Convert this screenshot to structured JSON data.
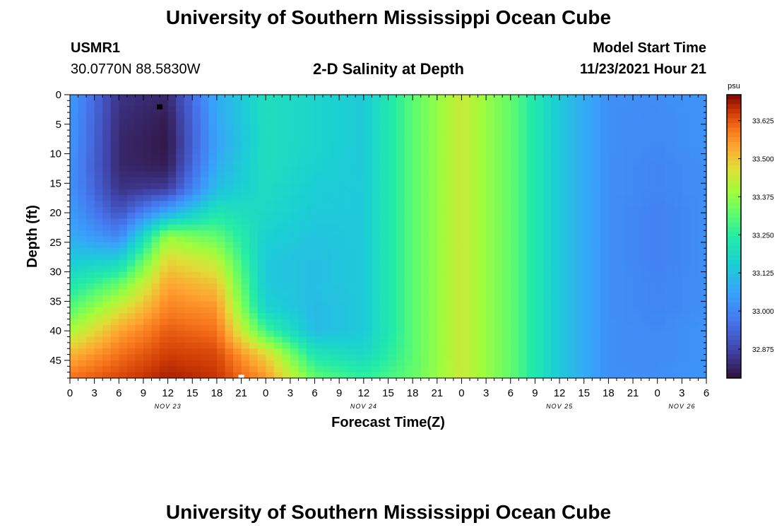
{
  "page": {
    "title_top": "University of Southern Mississippi Ocean Cube",
    "title_bottom": "University of Southern Mississippi Ocean Cube",
    "station": "USMR1",
    "coords": "30.0770N  88.5830W",
    "model_start_label": "Model Start Time",
    "model_start_value": "11/23/2021 Hour 21",
    "subtitle": "2-D Salinity at Depth"
  },
  "chart_data": {
    "type": "heatmap",
    "title": "2-D Salinity at Depth",
    "xlabel": "Forecast Time(Z)",
    "ylabel": "Depth (ft)",
    "x_ticks": [
      "0",
      "3",
      "6",
      "9",
      "12",
      "15",
      "18",
      "21",
      "0",
      "3",
      "6",
      "9",
      "12",
      "15",
      "18",
      "21",
      "0",
      "3",
      "6",
      "9",
      "12",
      "15",
      "18",
      "21",
      "0",
      "3",
      "6"
    ],
    "x_hours_range": [
      0,
      78
    ],
    "date_labels": [
      {
        "text": "NOV 23",
        "hour": 12
      },
      {
        "text": "NOV 24",
        "hour": 36
      },
      {
        "text": "NOV 25",
        "hour": 60
      },
      {
        "text": "NOV 26",
        "hour": 75
      }
    ],
    "y_ticks": [
      0,
      5,
      10,
      15,
      20,
      25,
      30,
      35,
      40,
      45
    ],
    "y_range": [
      0,
      48
    ],
    "y_inverted": true,
    "colorbar": {
      "unit": "psu",
      "ticks": [
        32.875,
        33.0,
        33.125,
        33.25,
        33.375,
        33.5,
        33.625
      ],
      "tick_labels": [
        "32.875",
        "33.000",
        "33.125",
        "33.250",
        "33.375",
        "33.500",
        "33.625"
      ],
      "range": [
        32.78,
        33.71
      ],
      "colormap": "turbo"
    },
    "markers": [
      {
        "hour": 11,
        "depth": 2,
        "color": "#000000"
      },
      {
        "hour": 21,
        "depth": 47.8,
        "color": "#ffffff"
      }
    ],
    "grid": {
      "x_hours": [
        0,
        6,
        12,
        18,
        24,
        30,
        36,
        42,
        48,
        54,
        60,
        66,
        72,
        78
      ],
      "depths_ft": [
        0,
        4,
        8,
        12,
        16,
        20,
        24,
        28,
        32,
        36,
        40,
        44,
        48
      ],
      "values": [
        [
          33.05,
          32.84,
          32.82,
          33.08,
          33.2,
          33.17,
          33.14,
          33.31,
          33.44,
          33.32,
          33.14,
          33.02,
          33.02,
          33.03
        ],
        [
          33.04,
          32.83,
          32.8,
          33.07,
          33.2,
          33.17,
          33.14,
          33.31,
          33.44,
          33.32,
          33.14,
          33.02,
          33.01,
          33.03
        ],
        [
          33.04,
          32.82,
          32.79,
          33.06,
          33.2,
          33.17,
          33.14,
          33.31,
          33.44,
          33.32,
          33.14,
          33.02,
          33.01,
          33.03
        ],
        [
          33.03,
          32.82,
          32.8,
          33.08,
          33.2,
          33.16,
          33.14,
          33.31,
          33.44,
          33.32,
          33.14,
          33.02,
          33.0,
          33.02
        ],
        [
          33.03,
          32.84,
          32.86,
          33.12,
          33.19,
          33.15,
          33.14,
          33.31,
          33.44,
          33.32,
          33.14,
          33.02,
          33.0,
          33.02
        ],
        [
          33.05,
          32.9,
          33.08,
          33.22,
          33.18,
          33.14,
          33.14,
          33.31,
          33.44,
          33.32,
          33.14,
          33.02,
          32.99,
          33.02
        ],
        [
          33.08,
          33.0,
          33.38,
          33.32,
          33.16,
          33.13,
          33.14,
          33.31,
          33.44,
          33.32,
          33.14,
          33.02,
          32.99,
          33.02
        ],
        [
          33.14,
          33.16,
          33.48,
          33.42,
          33.14,
          33.12,
          33.14,
          33.31,
          33.44,
          33.32,
          33.14,
          33.02,
          32.99,
          33.02
        ],
        [
          33.22,
          33.32,
          33.54,
          33.5,
          33.14,
          33.12,
          33.14,
          33.31,
          33.44,
          33.32,
          33.14,
          33.02,
          33.0,
          33.02
        ],
        [
          33.3,
          33.44,
          33.58,
          33.56,
          33.16,
          33.11,
          33.14,
          33.31,
          33.44,
          33.32,
          33.14,
          33.02,
          33.0,
          33.02
        ],
        [
          33.4,
          33.54,
          33.62,
          33.6,
          33.28,
          33.11,
          33.14,
          33.31,
          33.44,
          33.32,
          33.14,
          33.02,
          33.01,
          33.03
        ],
        [
          33.52,
          33.6,
          33.65,
          33.64,
          33.48,
          33.22,
          33.18,
          33.31,
          33.44,
          33.32,
          33.14,
          33.02,
          33.01,
          33.03
        ],
        [
          33.6,
          33.64,
          33.68,
          33.66,
          33.56,
          33.32,
          33.26,
          33.32,
          33.44,
          33.32,
          33.14,
          33.02,
          33.02,
          33.03
        ]
      ]
    }
  }
}
